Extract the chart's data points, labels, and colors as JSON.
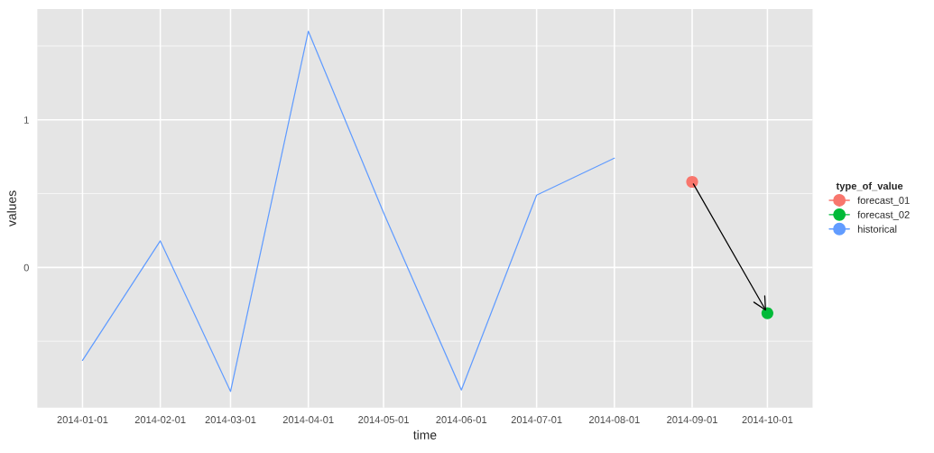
{
  "chart_data": {
    "type": "line",
    "xlabel": "time",
    "ylabel": "values",
    "legend_title": "type_of_value",
    "legend": "right",
    "grid": true,
    "xlim": [
      "2013-12-14",
      "2014-10-19"
    ],
    "xticks": [
      "2014-01-01",
      "2014-02-01",
      "2014-03-01",
      "2014-04-01",
      "2014-05-01",
      "2014-06-01",
      "2014-07-01",
      "2014-08-01",
      "2014-09-01",
      "2014-10-01"
    ],
    "ylim": [
      -0.95,
      1.75
    ],
    "yticks": [
      0,
      1
    ],
    "series": [
      {
        "name": "forecast_01",
        "type": "scatter",
        "color": "#f8766d",
        "marker": "circle",
        "x": [
          "2014-09-01"
        ],
        "values": [
          0.58
        ]
      },
      {
        "name": "forecast_02",
        "type": "scatter",
        "color": "#00ba38",
        "marker": "circle",
        "x": [
          "2014-10-01"
        ],
        "values": [
          -0.31
        ]
      },
      {
        "name": "historical",
        "color": "#619cff",
        "x": [
          "2014-01-01",
          "2014-02-01",
          "2014-03-01",
          "2014-04-01",
          "2014-05-01",
          "2014-06-01",
          "2014-07-01",
          "2014-08-01"
        ],
        "values": [
          -0.63,
          0.18,
          -0.84,
          1.6,
          0.37,
          -0.83,
          0.49,
          0.74
        ]
      }
    ]
  }
}
